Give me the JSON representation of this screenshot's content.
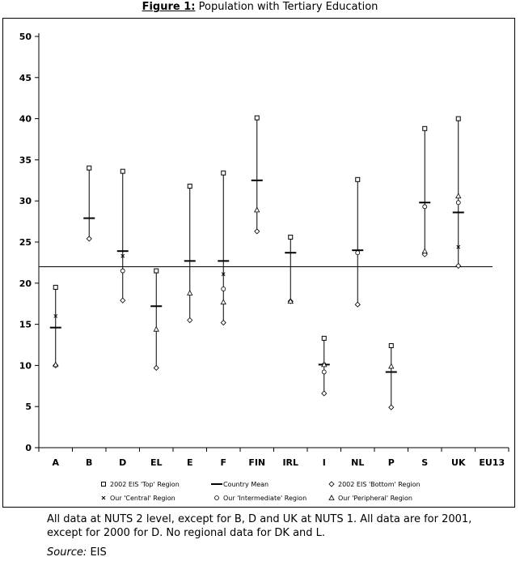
{
  "title_bold": "Figure 1:",
  "title_rest": " Population with Tertiary Education",
  "chart_data": {
    "type": "scatter",
    "categories": [
      "A",
      "B",
      "D",
      "EL",
      "E",
      "F",
      "FIN",
      "IRL",
      "I",
      "NL",
      "P",
      "S",
      "UK",
      "EU13"
    ],
    "ylim": [
      0,
      50
    ],
    "yticks": [
      0,
      5,
      10,
      15,
      20,
      25,
      30,
      35,
      40,
      45,
      50
    ],
    "reference_line": 22,
    "series": [
      {
        "name": "2002 EIS 'Top' Region",
        "marker": "square",
        "values": [
          19.5,
          34,
          33.6,
          21.5,
          31.8,
          33.4,
          40.1,
          25.6,
          13.3,
          32.6,
          12.4,
          38.8,
          40.0,
          null
        ]
      },
      {
        "name": "Country Mean",
        "marker": "dash",
        "values": [
          14.6,
          27.9,
          23.9,
          17.2,
          22.7,
          22.7,
          32.5,
          23.7,
          10.1,
          24.0,
          9.2,
          29.8,
          28.6,
          null
        ]
      },
      {
        "name": "2002 EIS 'Bottom' Region",
        "marker": "diamond",
        "values": [
          10.0,
          25.4,
          17.9,
          9.7,
          15.5,
          15.2,
          26.3,
          17.8,
          6.6,
          17.4,
          4.9,
          23.5,
          22.1,
          null
        ]
      },
      {
        "name": "Our 'Central' Region",
        "marker": "cross",
        "values": [
          16.0,
          null,
          23.3,
          null,
          null,
          21.1,
          null,
          null,
          10.1,
          null,
          null,
          null,
          24.4,
          null
        ]
      },
      {
        "name": "Our 'Intermediate' Region",
        "marker": "circle",
        "values": [
          null,
          null,
          21.5,
          null,
          null,
          19.3,
          null,
          null,
          9.2,
          23.7,
          null,
          29.3,
          29.8,
          null
        ]
      },
      {
        "name": "Our 'Peripheral' Region",
        "marker": "triangle",
        "values": [
          10.1,
          null,
          null,
          14.4,
          18.8,
          17.7,
          28.9,
          17.8,
          10.1,
          null,
          9.9,
          23.9,
          30.6,
          null
        ]
      }
    ]
  },
  "notes": "All data at NUTS 2 level, except for B, D and UK at NUTS 1. All data are for 2001, except for 2000 for D. No regional data for DK and L.",
  "source_label": "Source:",
  "source_value": " EIS"
}
